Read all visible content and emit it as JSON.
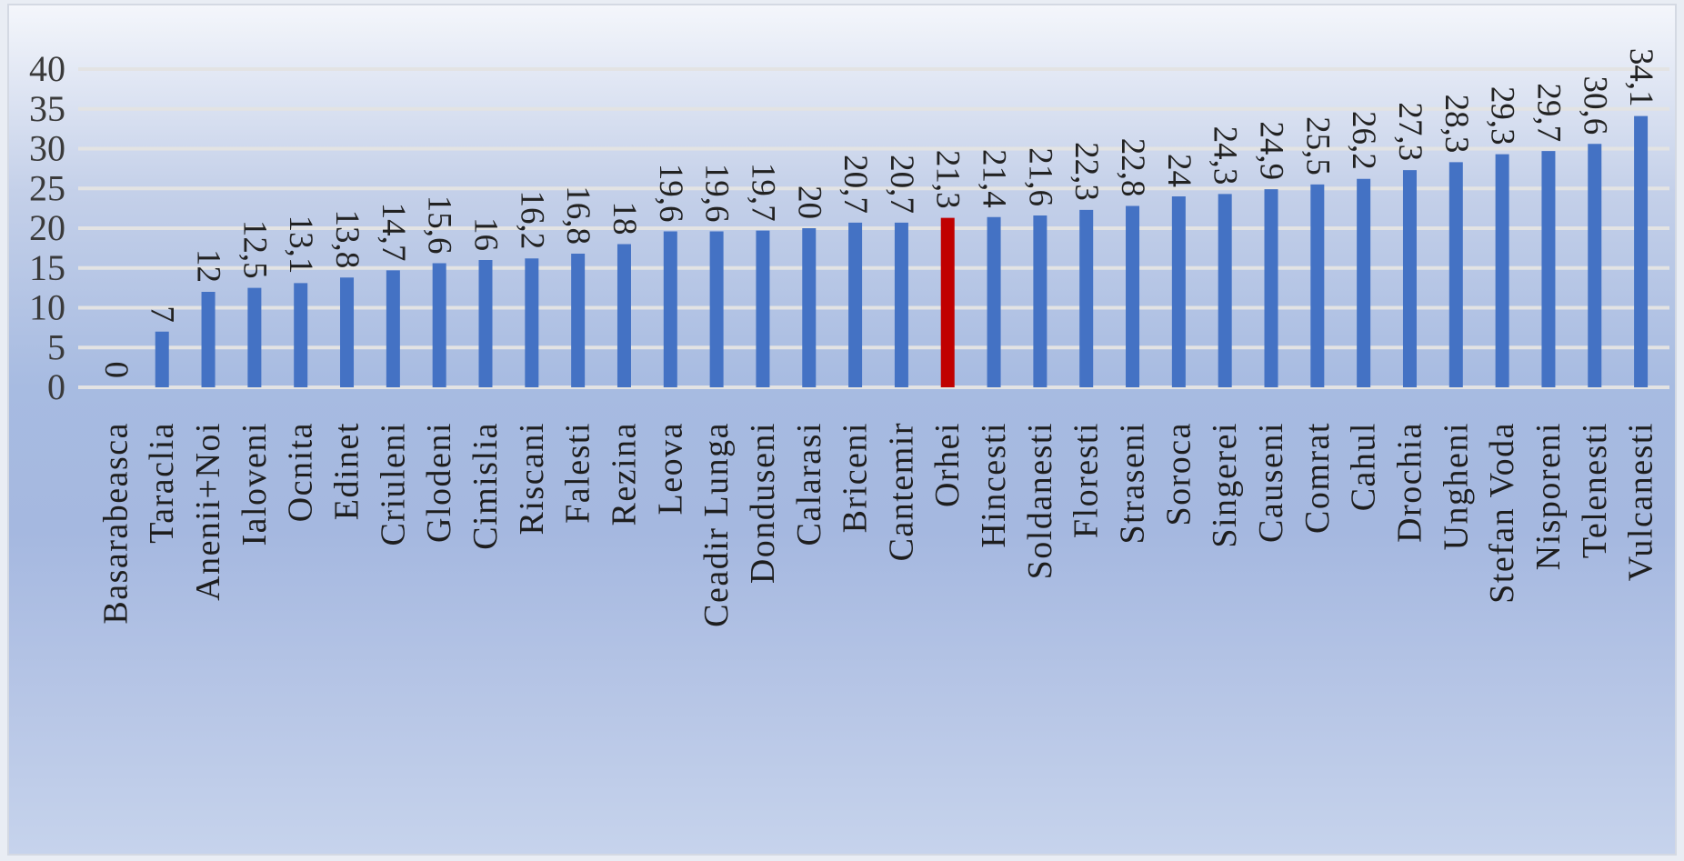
{
  "chart_data": {
    "type": "bar",
    "title": "",
    "xlabel": "",
    "ylabel": "",
    "ylim": [
      0,
      40
    ],
    "yticks": [
      0,
      5,
      10,
      15,
      20,
      25,
      30,
      35,
      40
    ],
    "grid": true,
    "legend": "none",
    "categories": [
      "Basarabeasca",
      "Taraclia",
      "Anenii+Noi",
      "Ialoveni",
      "Ocnita",
      "Edinet",
      "Criuleni",
      "Glodeni",
      "Cimislia",
      "Riscani",
      "Falesti",
      "Rezina",
      "Leova",
      "Ceadir Lunga",
      "Donduseni",
      "Calarasi",
      "Briceni",
      "Cantemir",
      "Orhei",
      "Hincesti",
      "Soldanesti",
      "Floresti",
      "Straseni",
      "Soroca",
      "Singerei",
      "Causeni",
      "Comrat",
      "Cahul",
      "Drochia",
      "Ungheni",
      "Stefan Voda",
      "Nisporeni",
      "Telenesti",
      "Vulcanesti"
    ],
    "values": [
      0,
      7,
      12,
      12.5,
      13.1,
      13.8,
      14.7,
      15.6,
      16,
      16.2,
      16.8,
      18,
      19.6,
      19.6,
      19.7,
      20,
      20.7,
      20.7,
      21.3,
      21.4,
      21.6,
      22.3,
      22.8,
      24,
      24.3,
      24.9,
      25.5,
      26.2,
      27.3,
      28.3,
      29.3,
      29.7,
      30.6,
      34.1
    ],
    "data_labels": [
      "0",
      "7",
      "12",
      "12,5",
      "13,1",
      "13,8",
      "14,7",
      "15,6",
      "16",
      "16,2",
      "16,8",
      "18",
      "19,6",
      "19,6",
      "19,7",
      "20",
      "20,7",
      "20,7",
      "21,3",
      "21,4",
      "21,6",
      "22,3",
      "22,8",
      "24",
      "24,3",
      "24,9",
      "25,5",
      "26,2",
      "27,3",
      "28,3",
      "29,3",
      "29,7",
      "30,6",
      "34,1"
    ],
    "highlight_category": "Orhei",
    "colors": {
      "bar": "#4472c4",
      "highlight": "#c00000",
      "grid": "#e3e3e3"
    }
  }
}
